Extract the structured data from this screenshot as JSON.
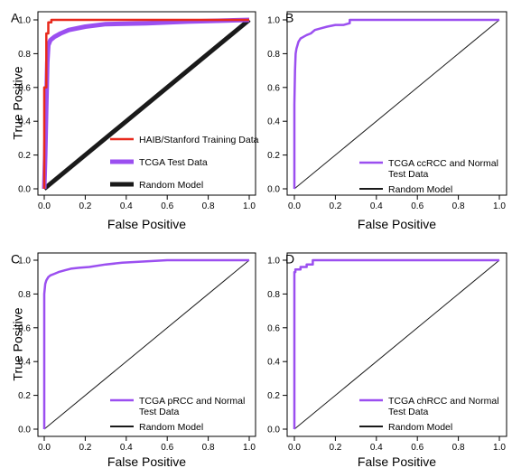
{
  "figure": {
    "panels": [
      "A",
      "B",
      "C",
      "D"
    ]
  },
  "colors": {
    "red": "#e8291c",
    "purple": "#9b4ff0",
    "black": "#1a1a1a"
  },
  "chart_data": [
    {
      "panel": "A",
      "type": "line",
      "xlabel": "False Positive",
      "ylabel": "True Positive",
      "xlim": [
        0,
        1
      ],
      "ylim": [
        0,
        1
      ],
      "xticks": [
        "0.0",
        "0.2",
        "0.4",
        "0.6",
        "0.8",
        "1.0"
      ],
      "yticks": [
        "0.0",
        "0.2",
        "0.4",
        "0.6",
        "0.8",
        "1.0"
      ],
      "legend_position": "bottom-right",
      "series": [
        {
          "name": "HAIB/Stanford Training Data",
          "color": "#e8291c",
          "width": 2.5,
          "x": [
            0,
            0,
            0.01,
            0.01,
            0.02,
            0.02,
            0.035,
            0.035,
            1.0
          ],
          "y": [
            0,
            0.6,
            0.6,
            0.92,
            0.92,
            0.985,
            0.985,
            1.0,
            1.0
          ]
        },
        {
          "name": "TCGA Test Data",
          "color": "#9b4ff0",
          "width": 5,
          "x": [
            0,
            0.005,
            0.01,
            0.015,
            0.02,
            0.03,
            0.05,
            0.08,
            0.12,
            0.2,
            0.3,
            0.5,
            0.7,
            1.0
          ],
          "y": [
            0,
            0.2,
            0.5,
            0.75,
            0.85,
            0.88,
            0.9,
            0.92,
            0.94,
            0.96,
            0.975,
            0.98,
            0.99,
            1.0
          ]
        },
        {
          "name": "Random Model",
          "color": "#1a1a1a",
          "width": 5,
          "x": [
            0,
            1
          ],
          "y": [
            0,
            1
          ]
        }
      ]
    },
    {
      "panel": "B",
      "type": "line",
      "xlabel": "False Positive",
      "ylabel": "",
      "xlim": [
        0,
        1
      ],
      "ylim": [
        0,
        1
      ],
      "xticks": [
        "0.0",
        "0.2",
        "0.4",
        "0.6",
        "0.8",
        "1.0"
      ],
      "yticks": [
        "0.0",
        "0.2",
        "0.4",
        "0.6",
        "0.8",
        "1.0"
      ],
      "legend_position": "bottom-right",
      "series": [
        {
          "name": "TCGA ccRCC and Normal\nTest Data",
          "color": "#9b4ff0",
          "width": 2.5,
          "x": [
            0,
            0,
            0.003,
            0.006,
            0.01,
            0.015,
            0.02,
            0.03,
            0.045,
            0.06,
            0.08,
            0.1,
            0.13,
            0.16,
            0.2,
            0.24,
            0.27,
            0.27,
            1.0
          ],
          "y": [
            0,
            0.5,
            0.7,
            0.8,
            0.83,
            0.85,
            0.87,
            0.89,
            0.9,
            0.91,
            0.92,
            0.94,
            0.95,
            0.96,
            0.97,
            0.97,
            0.98,
            1.0,
            1.0
          ]
        },
        {
          "name": "Random Model",
          "color": "#1a1a1a",
          "width": 1,
          "x": [
            0,
            1
          ],
          "y": [
            0,
            1
          ]
        }
      ]
    },
    {
      "panel": "C",
      "type": "line",
      "xlabel": "False Positive",
      "ylabel": "True Positive",
      "xlim": [
        0,
        1
      ],
      "ylim": [
        0,
        1
      ],
      "xticks": [
        "0.0",
        "0.2",
        "0.4",
        "0.6",
        "0.8",
        "1.0"
      ],
      "yticks": [
        "0.0",
        "0.2",
        "0.4",
        "0.6",
        "0.8",
        "1.0"
      ],
      "legend_position": "bottom-right",
      "series": [
        {
          "name": "TCGA pRCC and Normal\nTest Data",
          "color": "#9b4ff0",
          "width": 2.5,
          "x": [
            0,
            0,
            0.005,
            0.01,
            0.02,
            0.03,
            0.05,
            0.07,
            0.1,
            0.13,
            0.17,
            0.22,
            0.3,
            0.38,
            0.45,
            0.6,
            0.8,
            1.0
          ],
          "y": [
            0,
            0.8,
            0.86,
            0.88,
            0.9,
            0.91,
            0.92,
            0.93,
            0.94,
            0.95,
            0.955,
            0.96,
            0.975,
            0.985,
            0.99,
            1.0,
            1.0,
            1.0
          ]
        },
        {
          "name": "Random Model",
          "color": "#1a1a1a",
          "width": 1,
          "x": [
            0,
            1
          ],
          "y": [
            0,
            1
          ]
        }
      ]
    },
    {
      "panel": "D",
      "type": "line",
      "xlabel": "False Positive",
      "ylabel": "",
      "xlim": [
        0,
        1
      ],
      "ylim": [
        0,
        1
      ],
      "xticks": [
        "0.0",
        "0.2",
        "0.4",
        "0.6",
        "0.8",
        "1.0"
      ],
      "yticks": [
        "0.0",
        "0.2",
        "0.4",
        "0.6",
        "0.8",
        "1.0"
      ],
      "legend_position": "bottom-right",
      "series": [
        {
          "name": "TCGA chRCC and Normal\nTest Data",
          "color": "#9b4ff0",
          "width": 2.5,
          "x": [
            0,
            0,
            0.005,
            0.005,
            0.03,
            0.03,
            0.06,
            0.06,
            0.09,
            0.09,
            1.0
          ],
          "y": [
            0,
            0.93,
            0.93,
            0.945,
            0.945,
            0.96,
            0.96,
            0.975,
            0.975,
            1.0,
            1.0
          ]
        },
        {
          "name": "Random Model",
          "color": "#1a1a1a",
          "width": 1,
          "x": [
            0,
            1
          ],
          "y": [
            0,
            1
          ]
        }
      ]
    }
  ]
}
